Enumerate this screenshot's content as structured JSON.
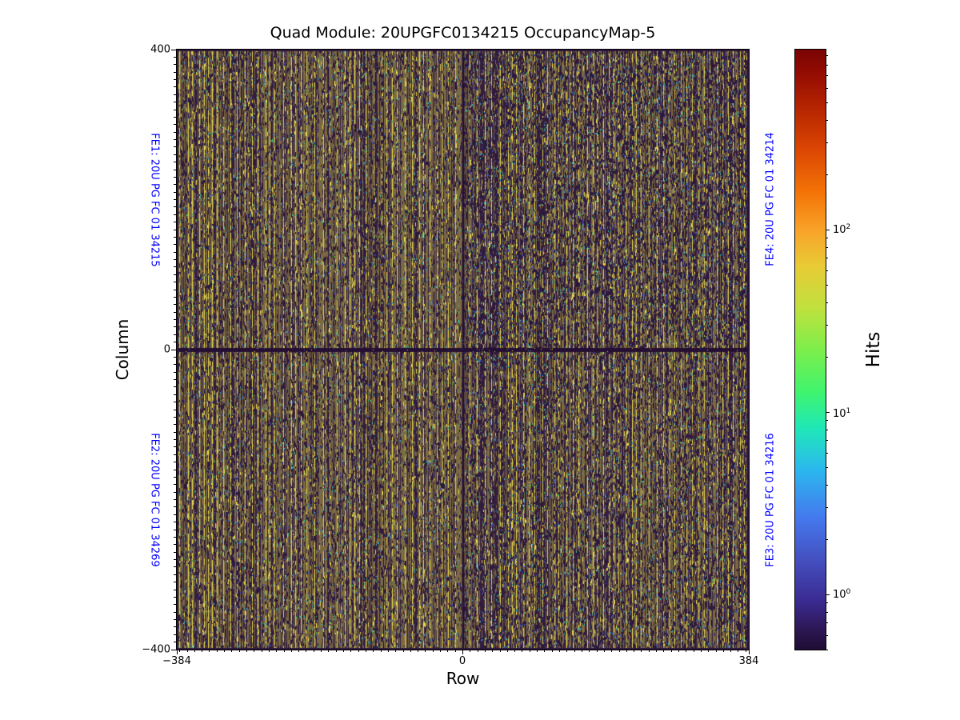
{
  "chart_data": {
    "type": "heatmap",
    "title": "Quad Module: 20UPGFC0134215 OccupancyMap-5",
    "xlabel": "Row",
    "ylabel": "Column",
    "x_range": [
      -384,
      384
    ],
    "y_range": [
      -400,
      400
    ],
    "x_ticks": [
      {
        "value": -384,
        "label": "−384"
      },
      {
        "value": 0,
        "label": "0"
      },
      {
        "value": 384,
        "label": "384"
      }
    ],
    "y_ticks": [
      {
        "value": 400,
        "label": "400"
      },
      {
        "value": 0,
        "label": "0"
      },
      {
        "value": -400,
        "label": "−400"
      }
    ],
    "minor_tick_step_units": 10,
    "grid": false,
    "colorbar": {
      "label": "Hits",
      "scale": "log",
      "colormap": "turbo",
      "range_approx": [
        0.5,
        970
      ],
      "ticks": [
        {
          "base": "10",
          "exp": "0",
          "value": 1
        },
        {
          "base": "10",
          "exp": "1",
          "value": 10
        },
        {
          "base": "10",
          "exp": "2",
          "value": 100
        }
      ],
      "gradient_stops": [
        {
          "pos": 0.0,
          "color": "#7a0403"
        },
        {
          "pos": 0.04,
          "color": "#940c02"
        },
        {
          "pos": 0.1,
          "color": "#b72601"
        },
        {
          "pos": 0.17,
          "color": "#dc4803"
        },
        {
          "pos": 0.24,
          "color": "#f47507"
        },
        {
          "pos": 0.3,
          "color": "#f9a229"
        },
        {
          "pos": 0.36,
          "color": "#e9ca35"
        },
        {
          "pos": 0.43,
          "color": "#c1e13e"
        },
        {
          "pos": 0.5,
          "color": "#7dee4b"
        },
        {
          "pos": 0.57,
          "color": "#40f46d"
        },
        {
          "pos": 0.63,
          "color": "#1fe8b6"
        },
        {
          "pos": 0.7,
          "color": "#2bb8ee"
        },
        {
          "pos": 0.78,
          "color": "#4479ee"
        },
        {
          "pos": 0.85,
          "color": "#4450c0"
        },
        {
          "pos": 0.92,
          "color": "#3a2a90"
        },
        {
          "pos": 0.97,
          "color": "#2c1650"
        },
        {
          "pos": 1.0,
          "color": "#200d35"
        }
      ]
    },
    "label_color": "#0000ff",
    "fe_labels": [
      {
        "id": "FE1",
        "text": "FE1: 20U PG FC 01 34215",
        "side": "left",
        "half": "top"
      },
      {
        "id": "FE2",
        "text": "FE2: 20U PG FC 01 34269",
        "side": "left",
        "half": "bottom"
      },
      {
        "id": "FE4",
        "text": "FE4: 20U PG FC 01 34214",
        "side": "right",
        "half": "top"
      },
      {
        "id": "FE3",
        "text": "FE3: 20U PG FC 01 34216",
        "side": "right",
        "half": "bottom"
      }
    ],
    "content_notes": "Quad-module pixel occupancy map: four 384x400 front-end chips. Texture of fine vertical stripes (olive/dark-purple with bright yellow core-column lines), scattered low-occupancy blue/cyan/green pixels; dark (near-zero) band along Column=0 and dark line along Row=0; right half (FE3/FE4) noisier with more dark and blue pixels; 2px dark border rows/columns at sensor edges.",
    "pattern": {
      "seed": 1398101,
      "base_colors": {
        "olive": "#7b6a41",
        "dark": "#341f3f",
        "yellow": "#e8d84e"
      },
      "speckle_colors": {
        "dark": "#2c173c",
        "olive": "#7b6a41",
        "yellow": "#e8d84e",
        "blue": "#3a55c8",
        "cyan": "#2fb5ce",
        "green": "#41c257",
        "teal": "#28c89e",
        "red": "#8c2b2b",
        "orange": "#bf7a2e"
      },
      "yellow_gap_min": 5,
      "yellow_gap_max": 11,
      "segment_probabilities": {
        "dark": 0.16,
        "olive": 0.13,
        "yellow": 0.02,
        "blue": 0.045,
        "cyan": 0.022,
        "green": 0.018,
        "teal": 0.012,
        "red": 0.007,
        "orange": 0.005
      },
      "right_half_factor": 1.45,
      "top_right_factor": 1.8,
      "center_band_color": "#250f33",
      "edge_color": "#2c173c"
    }
  }
}
